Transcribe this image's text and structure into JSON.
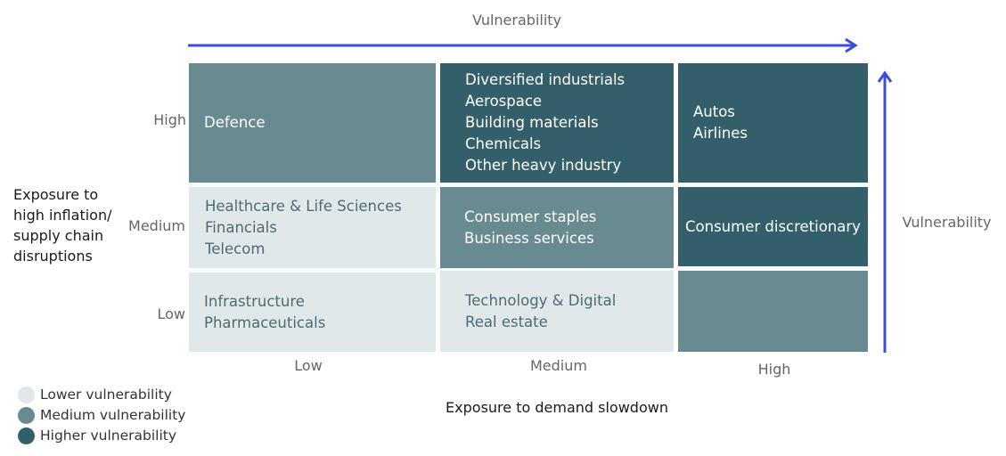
{
  "header": {
    "top_label": "Vulnerability",
    "side_label": "Vulnerability"
  },
  "axes": {
    "y_title": [
      "Exposure to",
      "high inflation/",
      "supply chain",
      "disruptions"
    ],
    "x_title": "Exposure to demand slowdown",
    "row_labels": [
      "High",
      "Medium",
      "Low"
    ],
    "col_labels": [
      "Low",
      "Medium",
      "High"
    ]
  },
  "grid": {
    "high_low": [
      "Defence"
    ],
    "high_medium": [
      "Diversified industrials",
      "Aerospace",
      "Building materials",
      "Chemicals",
      "Other heavy industry"
    ],
    "high_high": [
      "Autos",
      "Airlines"
    ],
    "medium_low": [
      "Healthcare & Life Sciences",
      "Financials",
      "Telecom"
    ],
    "medium_medium": [
      "Consumer staples",
      "Business services"
    ],
    "medium_high": [
      "Consumer discretionary"
    ],
    "low_low": [
      "Infrastructure",
      "Pharmaceuticals"
    ],
    "low_medium": [
      "Technology & Digital",
      "Real estate"
    ],
    "low_high": []
  },
  "legend": [
    {
      "label": "Lower vulnerability",
      "color": "#e1e8ea"
    },
    {
      "label": "Medium vulnerability",
      "color": "#688a91"
    },
    {
      "label": "Higher vulnerability",
      "color": "#335f6a"
    }
  ],
  "colors": {
    "arrow": "#3b4de0",
    "low": "#e1e8ea",
    "medium": "#688a91",
    "high": "#335f6a"
  }
}
